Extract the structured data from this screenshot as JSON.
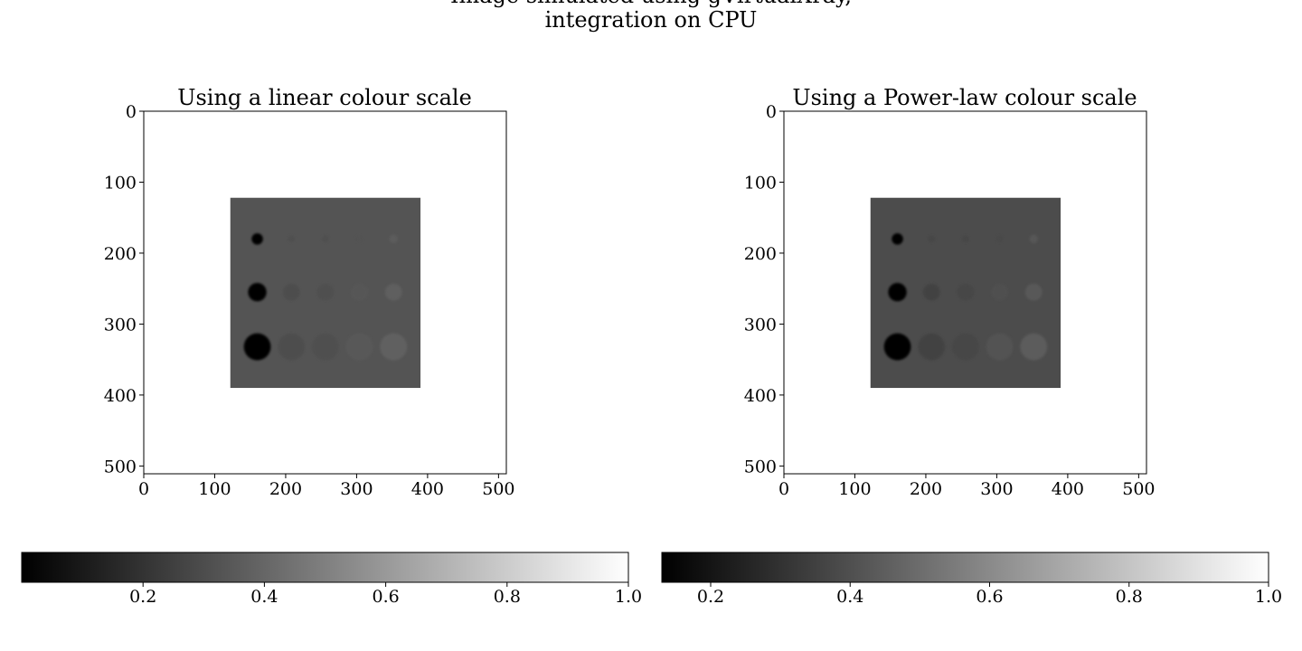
{
  "figure": {
    "suptitle_lines": [
      "Image simulated using gVirtualXray,",
      "integration on CPU"
    ]
  },
  "chart_data": [
    {
      "type": "heatmap",
      "title": "Using a linear colour scale",
      "colour_scale": "linear",
      "colormap": "gray",
      "xlim": [
        0,
        511
      ],
      "ylim": [
        511,
        0
      ],
      "xticks": [
        0,
        100,
        200,
        300,
        400,
        500
      ],
      "yticks": [
        0,
        100,
        200,
        300,
        400,
        500
      ],
      "background_value": 1.0,
      "block": {
        "x0": 122,
        "x1": 390,
        "y0": 122,
        "y1": 390,
        "value": 0.33
      },
      "inserts": [
        {
          "x": 160,
          "y": 180,
          "r": 8,
          "value": 0.0
        },
        {
          "x": 208,
          "y": 180,
          "r": 5,
          "value": 0.31
        },
        {
          "x": 256,
          "y": 180,
          "r": 5,
          "value": 0.31
        },
        {
          "x": 304,
          "y": 180,
          "r": 5,
          "value": 0.32
        },
        {
          "x": 352,
          "y": 180,
          "r": 6,
          "value": 0.36
        },
        {
          "x": 160,
          "y": 255,
          "r": 13,
          "value": 0.0
        },
        {
          "x": 208,
          "y": 255,
          "r": 12,
          "value": 0.3
        },
        {
          "x": 256,
          "y": 255,
          "r": 12,
          "value": 0.31
        },
        {
          "x": 304,
          "y": 255,
          "r": 12,
          "value": 0.34
        },
        {
          "x": 352,
          "y": 255,
          "r": 12,
          "value": 0.37
        },
        {
          "x": 160,
          "y": 332,
          "r": 19,
          "value": 0.0
        },
        {
          "x": 208,
          "y": 332,
          "r": 19,
          "value": 0.3
        },
        {
          "x": 256,
          "y": 332,
          "r": 19,
          "value": 0.31
        },
        {
          "x": 304,
          "y": 332,
          "r": 19,
          "value": 0.35
        },
        {
          "x": 352,
          "y": 332,
          "r": 19,
          "value": 0.38
        }
      ],
      "colorbar": {
        "orientation": "horizontal",
        "range": [
          0.0,
          1.0
        ],
        "ticks": [
          0.2,
          0.4,
          0.6,
          0.8,
          1.0
        ],
        "tick_labels": [
          "0.2",
          "0.4",
          "0.6",
          "0.8",
          "1.0"
        ]
      }
    },
    {
      "type": "heatmap",
      "title": "Using a Power-law colour scale",
      "colour_scale": "power-law",
      "colormap": "gray",
      "xlim": [
        0,
        511
      ],
      "ylim": [
        511,
        0
      ],
      "xticks": [
        0,
        100,
        200,
        300,
        400,
        500
      ],
      "yticks": [
        0,
        100,
        200,
        300,
        400,
        500
      ],
      "background_value": 1.0,
      "block": {
        "x0": 122,
        "x1": 390,
        "y0": 122,
        "y1": 390,
        "value": 0.33
      },
      "inserts": [
        {
          "x": 160,
          "y": 180,
          "r": 8,
          "value": 0.0
        },
        {
          "x": 208,
          "y": 180,
          "r": 5,
          "value": 0.31
        },
        {
          "x": 256,
          "y": 180,
          "r": 5,
          "value": 0.31
        },
        {
          "x": 304,
          "y": 180,
          "r": 5,
          "value": 0.32
        },
        {
          "x": 352,
          "y": 180,
          "r": 6,
          "value": 0.36
        },
        {
          "x": 160,
          "y": 255,
          "r": 13,
          "value": 0.0
        },
        {
          "x": 208,
          "y": 255,
          "r": 12,
          "value": 0.3
        },
        {
          "x": 256,
          "y": 255,
          "r": 12,
          "value": 0.31
        },
        {
          "x": 304,
          "y": 255,
          "r": 12,
          "value": 0.34
        },
        {
          "x": 352,
          "y": 255,
          "r": 12,
          "value": 0.37
        },
        {
          "x": 160,
          "y": 332,
          "r": 19,
          "value": 0.0
        },
        {
          "x": 208,
          "y": 332,
          "r": 19,
          "value": 0.3
        },
        {
          "x": 256,
          "y": 332,
          "r": 19,
          "value": 0.31
        },
        {
          "x": 304,
          "y": 332,
          "r": 19,
          "value": 0.35
        },
        {
          "x": 352,
          "y": 332,
          "r": 19,
          "value": 0.38
        }
      ],
      "colorbar": {
        "orientation": "horizontal",
        "range": [
          0.13,
          1.0
        ],
        "ticks": [
          0.2,
          0.4,
          0.6,
          0.8,
          1.0
        ],
        "tick_labels": [
          "0.2",
          "0.4",
          "0.6",
          "0.8",
          "1.0"
        ]
      }
    }
  ]
}
